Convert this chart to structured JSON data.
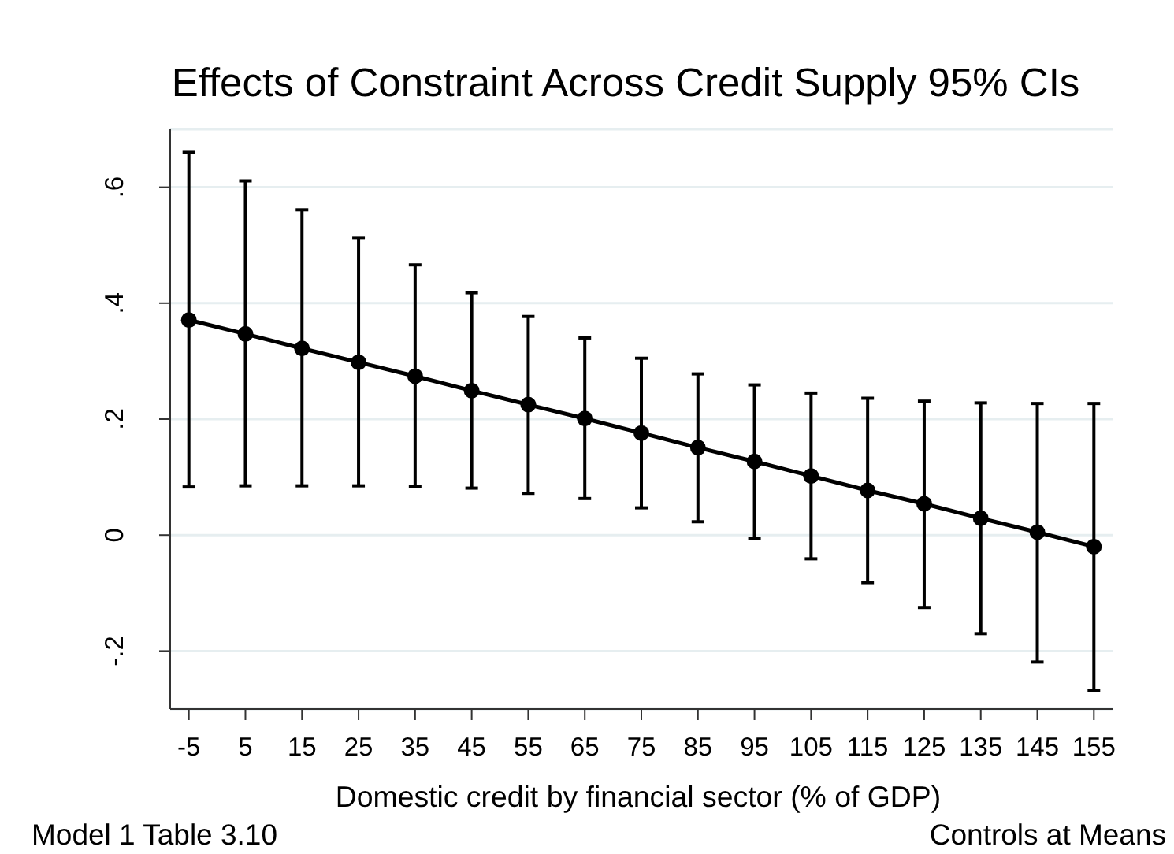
{
  "chart_data": {
    "type": "line",
    "title": "Effects of Constraint Across Credit Supply 95% CIs",
    "xlabel": "Domestic credit by financial sector (% of GDP)",
    "annotations": [
      "Model 1 Table 3.10",
      "Controls at Means"
    ],
    "x": [
      -5,
      5,
      15,
      25,
      35,
      45,
      55,
      65,
      75,
      85,
      95,
      105,
      115,
      125,
      135,
      145,
      155
    ],
    "series": [
      {
        "color": "#000000",
        "values": [
          0.371,
          0.347,
          0.322,
          0.298,
          0.274,
          0.249,
          0.225,
          0.201,
          0.176,
          0.151,
          0.127,
          0.102,
          0.077,
          0.054,
          0.029,
          0.005,
          -0.02
        ],
        "errors": [
          [
            0.083,
            0.66
          ],
          [
            0.085,
            0.611
          ],
          [
            0.085,
            0.561
          ],
          [
            0.085,
            0.512
          ],
          [
            0.084,
            0.466
          ],
          [
            0.081,
            0.418
          ],
          [
            0.072,
            0.377
          ],
          [
            0.063,
            0.34
          ],
          [
            0.047,
            0.305
          ],
          [
            0.023,
            0.278
          ],
          [
            -0.006,
            0.259
          ],
          [
            -0.041,
            0.245
          ],
          [
            -0.082,
            0.236
          ],
          [
            -0.125,
            0.231
          ],
          [
            -0.17,
            0.228
          ],
          [
            -0.219,
            0.227
          ],
          [
            -0.268,
            0.227
          ]
        ]
      }
    ],
    "xlim": [
      -8.3,
      158.3
    ],
    "xticks": [
      -5,
      5,
      15,
      25,
      35,
      45,
      55,
      65,
      75,
      85,
      95,
      105,
      115,
      125,
      135,
      145,
      155
    ],
    "ylim": [
      -0.3,
      0.7
    ],
    "yticks": [
      {
        "value": -0.2,
        "label": "-.2"
      },
      0,
      {
        "value": 0.2,
        "label": ".2"
      },
      {
        "value": 0.4,
        "label": ".4"
      },
      {
        "value": 0.6,
        "label": ".6"
      }
    ],
    "grid": "y",
    "marker": "circle",
    "line_style": "solid"
  }
}
